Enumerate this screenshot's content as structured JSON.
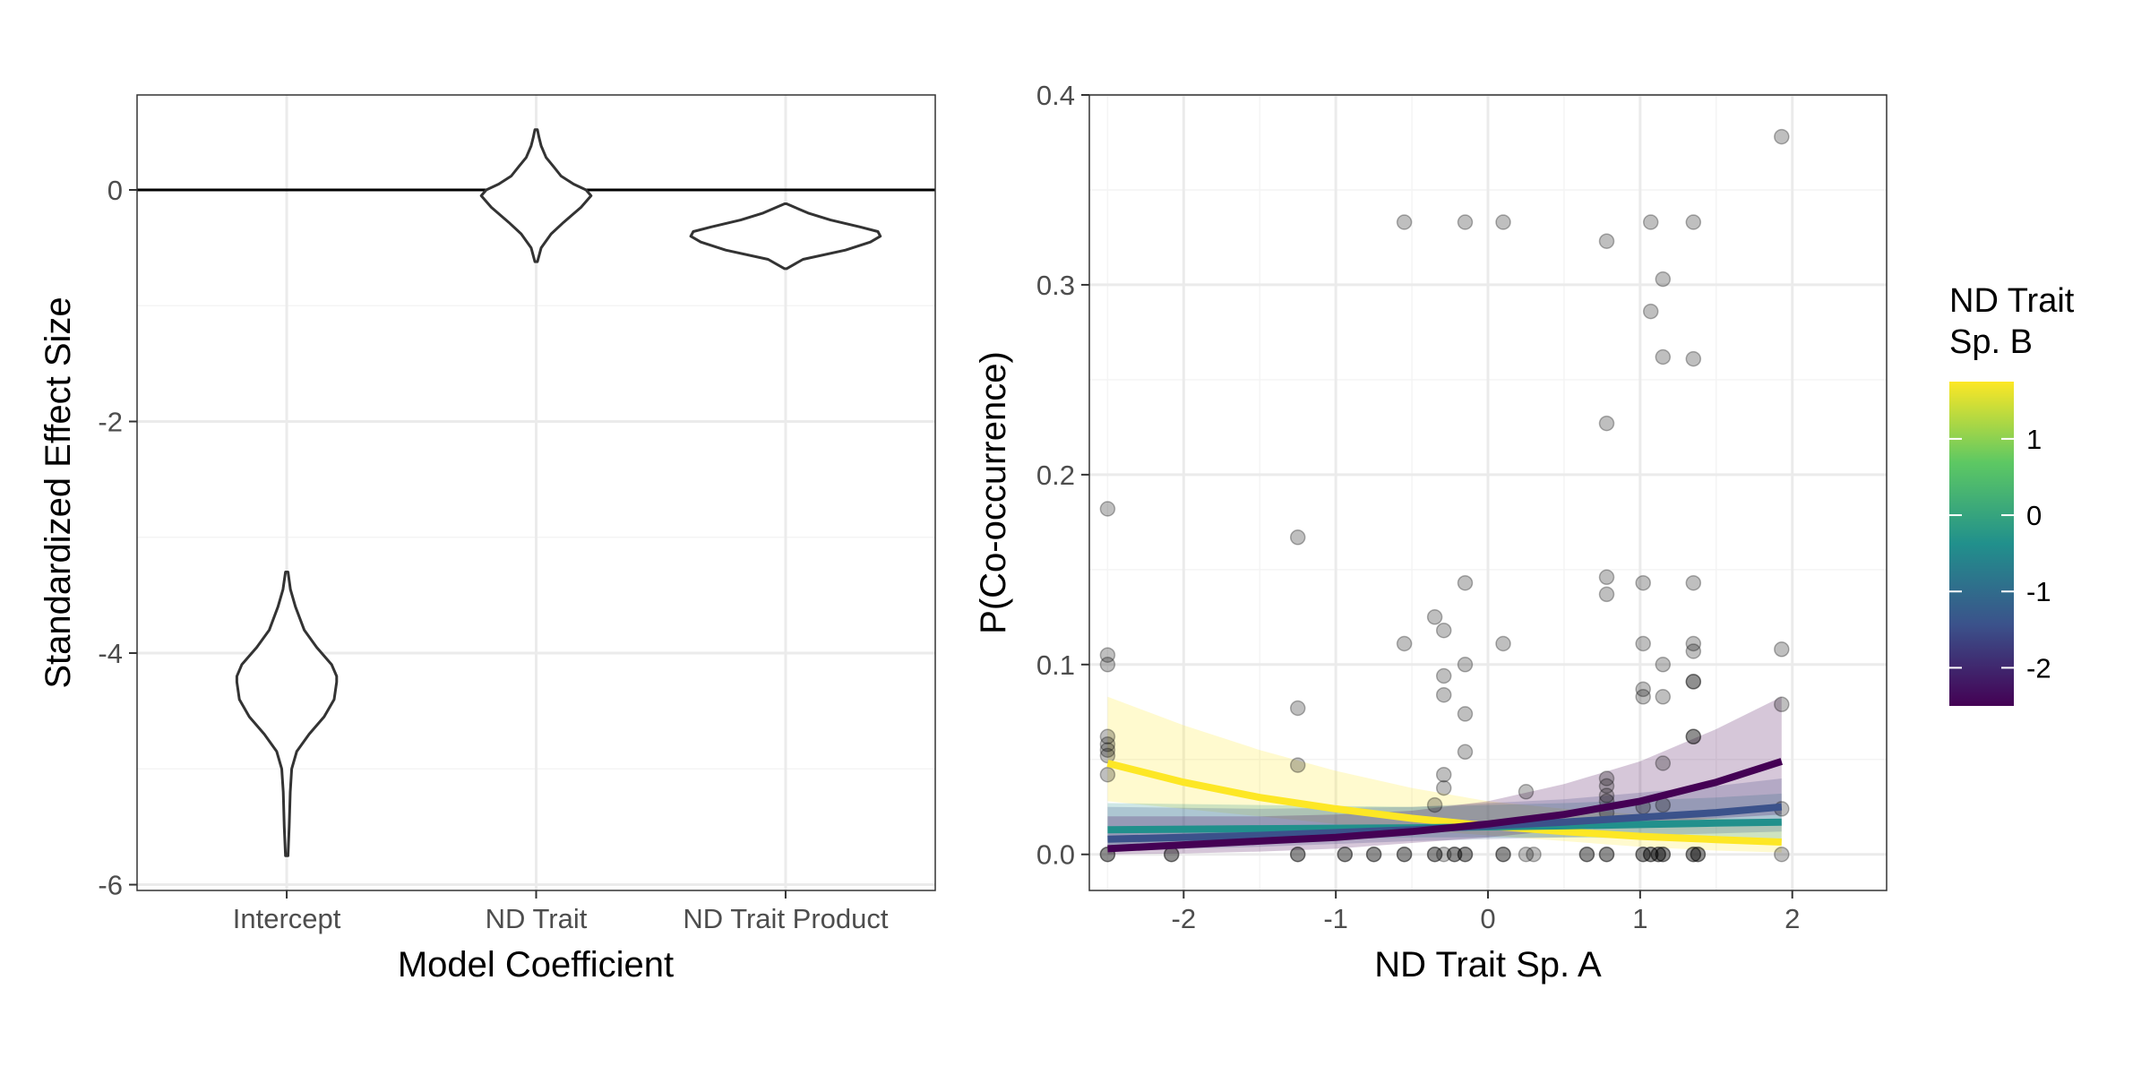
{
  "colors": {
    "violin": "#333333",
    "zero_line": "#000000",
    "grid_major": "#ebebeb",
    "grid_minor": "#f4f4f4",
    "point": "#000000",
    "viridis": [
      "#440154",
      "#3b528b",
      "#21908c",
      "#5dc863",
      "#fde725"
    ]
  },
  "chart_data": [
    {
      "type": "violin",
      "title": "",
      "xlabel": "Model Coefficient",
      "ylabel": "Standardized Effect Size",
      "categories": [
        "Intercept",
        "ND Trait",
        "ND Trait Product"
      ],
      "ylim": [
        -6.05,
        0.82
      ],
      "yticks": [
        -6,
        -4,
        -2,
        0
      ],
      "ytick_labels": [
        "-6",
        "-4",
        "-2",
        "0"
      ],
      "hline": 0,
      "grid": true,
      "violins": [
        {
          "category": "Intercept",
          "y": [
            -5.75,
            -5.5,
            -5.2,
            -5.0,
            -4.85,
            -4.7,
            -4.55,
            -4.4,
            -4.25,
            -4.2,
            -4.1,
            -3.95,
            -3.8,
            -3.6,
            -3.45,
            -3.3
          ],
          "half_width": [
            0.005,
            0.01,
            0.014,
            0.02,
            0.04,
            0.09,
            0.15,
            0.19,
            0.2,
            0.2,
            0.18,
            0.12,
            0.07,
            0.035,
            0.015,
            0.005
          ]
        },
        {
          "category": "ND Trait",
          "y": [
            -0.62,
            -0.5,
            -0.38,
            -0.28,
            -0.15,
            -0.05,
            0.0,
            0.05,
            0.12,
            0.2,
            0.28,
            0.38,
            0.45,
            0.52
          ],
          "half_width": [
            0.005,
            0.02,
            0.06,
            0.11,
            0.18,
            0.22,
            0.2,
            0.15,
            0.1,
            0.07,
            0.04,
            0.02,
            0.012,
            0.005
          ]
        },
        {
          "category": "ND Trait Product",
          "y": [
            -0.68,
            -0.6,
            -0.52,
            -0.45,
            -0.4,
            -0.36,
            -0.32,
            -0.26,
            -0.2,
            -0.12
          ],
          "half_width": [
            0.004,
            0.07,
            0.24,
            0.34,
            0.38,
            0.37,
            0.3,
            0.18,
            0.09,
            0.004
          ]
        }
      ]
    },
    {
      "type": "scatter",
      "title": "",
      "xlabel": "ND Trait Sp. A",
      "ylabel": "P(Co-occurrence)",
      "xlim": [
        -2.62,
        2.62
      ],
      "ylim": [
        -0.019,
        0.4
      ],
      "xticks": [
        -2,
        -1,
        0,
        1,
        2
      ],
      "xtick_labels": [
        "-2",
        "-1",
        "0",
        "1",
        "2"
      ],
      "yticks": [
        0.0,
        0.1,
        0.2,
        0.3,
        0.4
      ],
      "ytick_labels": [
        "0.0",
        "0.1",
        "0.2",
        "0.3",
        "0.4"
      ],
      "grid": true,
      "points": [
        [
          -2.5,
          0.182
        ],
        [
          -2.5,
          0.105
        ],
        [
          -2.5,
          0.1
        ],
        [
          -2.5,
          0.062
        ],
        [
          -2.5,
          0.058
        ],
        [
          -2.5,
          0.055
        ],
        [
          -2.5,
          0.052
        ],
        [
          -2.5,
          0.042
        ],
        [
          -2.5,
          0.0
        ],
        [
          -2.5,
          0.0
        ],
        [
          -2.08,
          0.0
        ],
        [
          -2.08,
          0.0
        ],
        [
          -1.25,
          0.167
        ],
        [
          -1.25,
          0.077
        ],
        [
          -1.25,
          0.047
        ],
        [
          -1.25,
          0.0
        ],
        [
          -1.25,
          0.0
        ],
        [
          -0.94,
          0.0
        ],
        [
          -0.94,
          0.0
        ],
        [
          -0.75,
          0.0
        ],
        [
          -0.75,
          0.0
        ],
        [
          -0.55,
          0.333
        ],
        [
          -0.55,
          0.111
        ],
        [
          -0.55,
          0.0
        ],
        [
          -0.55,
          0.0
        ],
        [
          -0.35,
          0.125
        ],
        [
          -0.35,
          0.026
        ],
        [
          -0.35,
          0.0
        ],
        [
          -0.35,
          0.0
        ],
        [
          -0.29,
          0.118
        ],
        [
          -0.29,
          0.094
        ],
        [
          -0.29,
          0.084
        ],
        [
          -0.29,
          0.042
        ],
        [
          -0.29,
          0.035
        ],
        [
          -0.29,
          0.0
        ],
        [
          -0.22,
          0.0
        ],
        [
          -0.22,
          0.0
        ],
        [
          -0.15,
          0.333
        ],
        [
          -0.15,
          0.143
        ],
        [
          -0.15,
          0.1
        ],
        [
          -0.15,
          0.074
        ],
        [
          -0.15,
          0.054
        ],
        [
          -0.15,
          0.0
        ],
        [
          -0.15,
          0.0
        ],
        [
          0.1,
          0.333
        ],
        [
          0.1,
          0.111
        ],
        [
          0.1,
          0.0
        ],
        [
          0.1,
          0.0
        ],
        [
          0.25,
          0.033
        ],
        [
          0.25,
          0.0
        ],
        [
          0.3,
          0.0
        ],
        [
          0.65,
          0.0
        ],
        [
          0.65,
          0.0
        ],
        [
          0.78,
          0.323
        ],
        [
          0.78,
          0.227
        ],
        [
          0.78,
          0.146
        ],
        [
          0.78,
          0.137
        ],
        [
          0.78,
          0.04
        ],
        [
          0.78,
          0.036
        ],
        [
          0.78,
          0.031
        ],
        [
          0.78,
          0.028
        ],
        [
          0.78,
          0.022
        ],
        [
          0.78,
          0.0
        ],
        [
          0.78,
          0.0
        ],
        [
          1.02,
          0.143
        ],
        [
          1.02,
          0.111
        ],
        [
          1.02,
          0.087
        ],
        [
          1.02,
          0.083
        ],
        [
          1.02,
          0.025
        ],
        [
          1.02,
          0.0
        ],
        [
          1.02,
          0.0
        ],
        [
          1.07,
          0.333
        ],
        [
          1.07,
          0.286
        ],
        [
          1.07,
          0.0
        ],
        [
          1.07,
          0.0
        ],
        [
          1.12,
          0.0
        ],
        [
          1.12,
          0.0
        ],
        [
          1.15,
          0.303
        ],
        [
          1.15,
          0.262
        ],
        [
          1.15,
          0.1
        ],
        [
          1.15,
          0.083
        ],
        [
          1.15,
          0.048
        ],
        [
          1.15,
          0.026
        ],
        [
          1.15,
          0.0
        ],
        [
          1.15,
          0.0
        ],
        [
          1.35,
          0.333
        ],
        [
          1.35,
          0.261
        ],
        [
          1.35,
          0.143
        ],
        [
          1.35,
          0.111
        ],
        [
          1.35,
          0.107
        ],
        [
          1.35,
          0.091
        ],
        [
          1.35,
          0.091
        ],
        [
          1.35,
          0.062
        ],
        [
          1.35,
          0.062
        ],
        [
          1.35,
          0.0
        ],
        [
          1.35,
          0.0
        ],
        [
          1.38,
          0.0
        ],
        [
          1.38,
          0.0
        ],
        [
          1.93,
          0.378
        ],
        [
          1.93,
          0.108
        ],
        [
          1.93,
          0.079
        ],
        [
          1.93,
          0.024
        ],
        [
          1.93,
          0.0
        ]
      ],
      "fit_lines": [
        {
          "color": "#fde725",
          "x": [
            -2.5,
            -2.0,
            -1.5,
            -1.0,
            -0.5,
            0.0,
            0.5,
            1.0,
            1.5,
            1.93
          ],
          "y": [
            0.048,
            0.038,
            0.03,
            0.024,
            0.019,
            0.015,
            0.012,
            0.0095,
            0.0078,
            0.0065
          ],
          "ci_lower": [
            0.028,
            0.024,
            0.02,
            0.016,
            0.013,
            0.01,
            0.007,
            0.004,
            0.002,
            0.001
          ],
          "ci_upper": [
            0.083,
            0.068,
            0.055,
            0.044,
            0.035,
            0.028,
            0.024,
            0.021,
            0.019,
            0.017
          ]
        },
        {
          "color": "#21908c",
          "x": [
            -2.5,
            -1.5,
            -0.5,
            0.5,
            1.5,
            1.93
          ],
          "y": [
            0.013,
            0.0135,
            0.014,
            0.015,
            0.0165,
            0.017
          ],
          "ci_lower": [
            0.005,
            0.007,
            0.009,
            0.009,
            0.008,
            0.007
          ],
          "ci_upper": [
            0.027,
            0.026,
            0.025,
            0.027,
            0.03,
            0.032
          ]
        },
        {
          "color": "#3b528b",
          "x": [
            -2.5,
            -1.5,
            -0.5,
            0.5,
            1.5,
            1.93
          ],
          "y": [
            0.008,
            0.01,
            0.013,
            0.017,
            0.022,
            0.025
          ],
          "ci_lower": [
            0.002,
            0.004,
            0.007,
            0.009,
            0.011,
            0.012
          ],
          "ci_upper": [
            0.025,
            0.024,
            0.025,
            0.029,
            0.036,
            0.04
          ]
        },
        {
          "color": "#440154",
          "x": [
            -2.5,
            -2.0,
            -1.5,
            -1.0,
            -0.5,
            0.0,
            0.5,
            1.0,
            1.5,
            1.93
          ],
          "y": [
            0.003,
            0.005,
            0.007,
            0.009,
            0.012,
            0.016,
            0.021,
            0.028,
            0.038,
            0.049
          ],
          "ci_lower": [
            0.0,
            0.0005,
            0.0015,
            0.003,
            0.006,
            0.009,
            0.013,
            0.016,
            0.019,
            0.021
          ],
          "ci_upper": [
            0.02,
            0.02,
            0.02,
            0.021,
            0.023,
            0.028,
            0.037,
            0.049,
            0.066,
            0.083
          ]
        }
      ],
      "legend": {
        "title": "ND Trait\nSp. B",
        "type": "colorbar",
        "range": [
          -2.5,
          1.75
        ],
        "ticks": [
          1,
          0,
          -1,
          -2
        ],
        "tick_labels": [
          "1",
          "0",
          "-1",
          "-2"
        ],
        "placement": "right"
      }
    }
  ]
}
